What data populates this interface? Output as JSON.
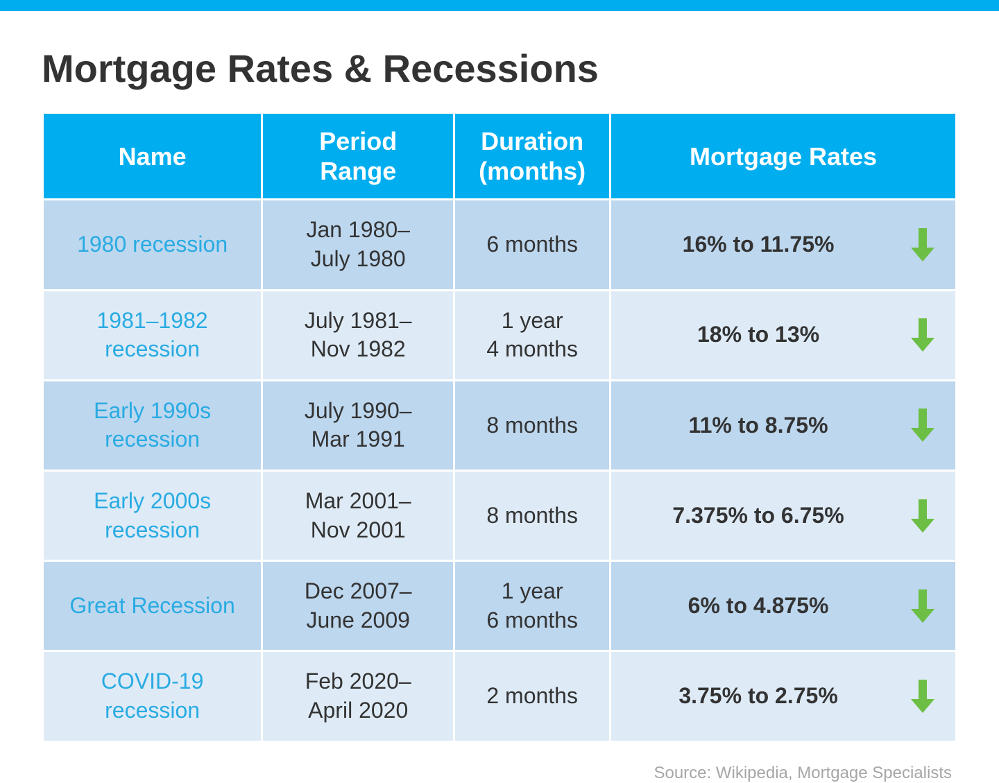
{
  "title": "Mortgage Rates & Recessions",
  "colors": {
    "top_bar": "#00aeef",
    "header_bg": "#00aeef",
    "header_text": "#ffffff",
    "row_odd_bg": "#bdd7ee",
    "row_even_bg": "#deebf7",
    "name_text": "#29abe2",
    "body_text": "#333333",
    "arrow": "#6cbe45",
    "source_text": "#a6a6a6",
    "background": "#ffffff"
  },
  "layout": {
    "col_widths_pct": [
      24,
      21,
      17,
      38
    ],
    "title_fontsize": 56,
    "header_fontsize": 36,
    "cell_fontsize": 32,
    "source_fontsize": 24
  },
  "table": {
    "columns": [
      "Name",
      "Period Range",
      "Duration (months)",
      "Mortgage Rates"
    ],
    "rows": [
      {
        "name": "1980 recession",
        "period": "Jan 1980–\nJuly 1980",
        "duration": "6 months",
        "rate": "16% to 11.75%",
        "direction": "down"
      },
      {
        "name": "1981–1982 recession",
        "period": "July 1981–\nNov 1982",
        "duration": "1 year\n4 months",
        "rate": "18% to 13%",
        "direction": "down"
      },
      {
        "name": "Early 1990s recession",
        "period": "July 1990–\nMar 1991",
        "duration": "8 months",
        "rate": "11% to 8.75%",
        "direction": "down"
      },
      {
        "name": "Early 2000s recession",
        "period": "Mar 2001–\nNov 2001",
        "duration": "8 months",
        "rate": "7.375% to 6.75%",
        "direction": "down"
      },
      {
        "name": "Great Recession",
        "period": "Dec 2007–\nJune 2009",
        "duration": "1 year\n6 months",
        "rate": "6% to 4.875%",
        "direction": "down"
      },
      {
        "name": "COVID-19 recession",
        "period": "Feb 2020–\nApril 2020",
        "duration": "2 months",
        "rate": "3.75% to 2.75%",
        "direction": "down"
      }
    ]
  },
  "source": "Source: Wikipedia, Mortgage Specialists"
}
